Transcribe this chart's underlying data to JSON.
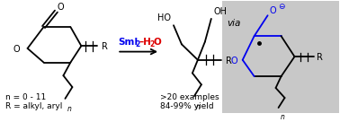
{
  "background_color": "#ffffff",
  "gray_box_color": "#c8c8c8",
  "bond_color": "#000000",
  "blue_color": "#0000ee",
  "red_color": "#dd0000",
  "lw": 1.3,
  "n_label": "n = 0 - 11",
  "r_label": "R = alkyl, aryl",
  "yield_label": ">20 examples",
  "yield_label2": "84-99% yield",
  "label_fontsize": 6.5,
  "via_fontsize": 7.5
}
